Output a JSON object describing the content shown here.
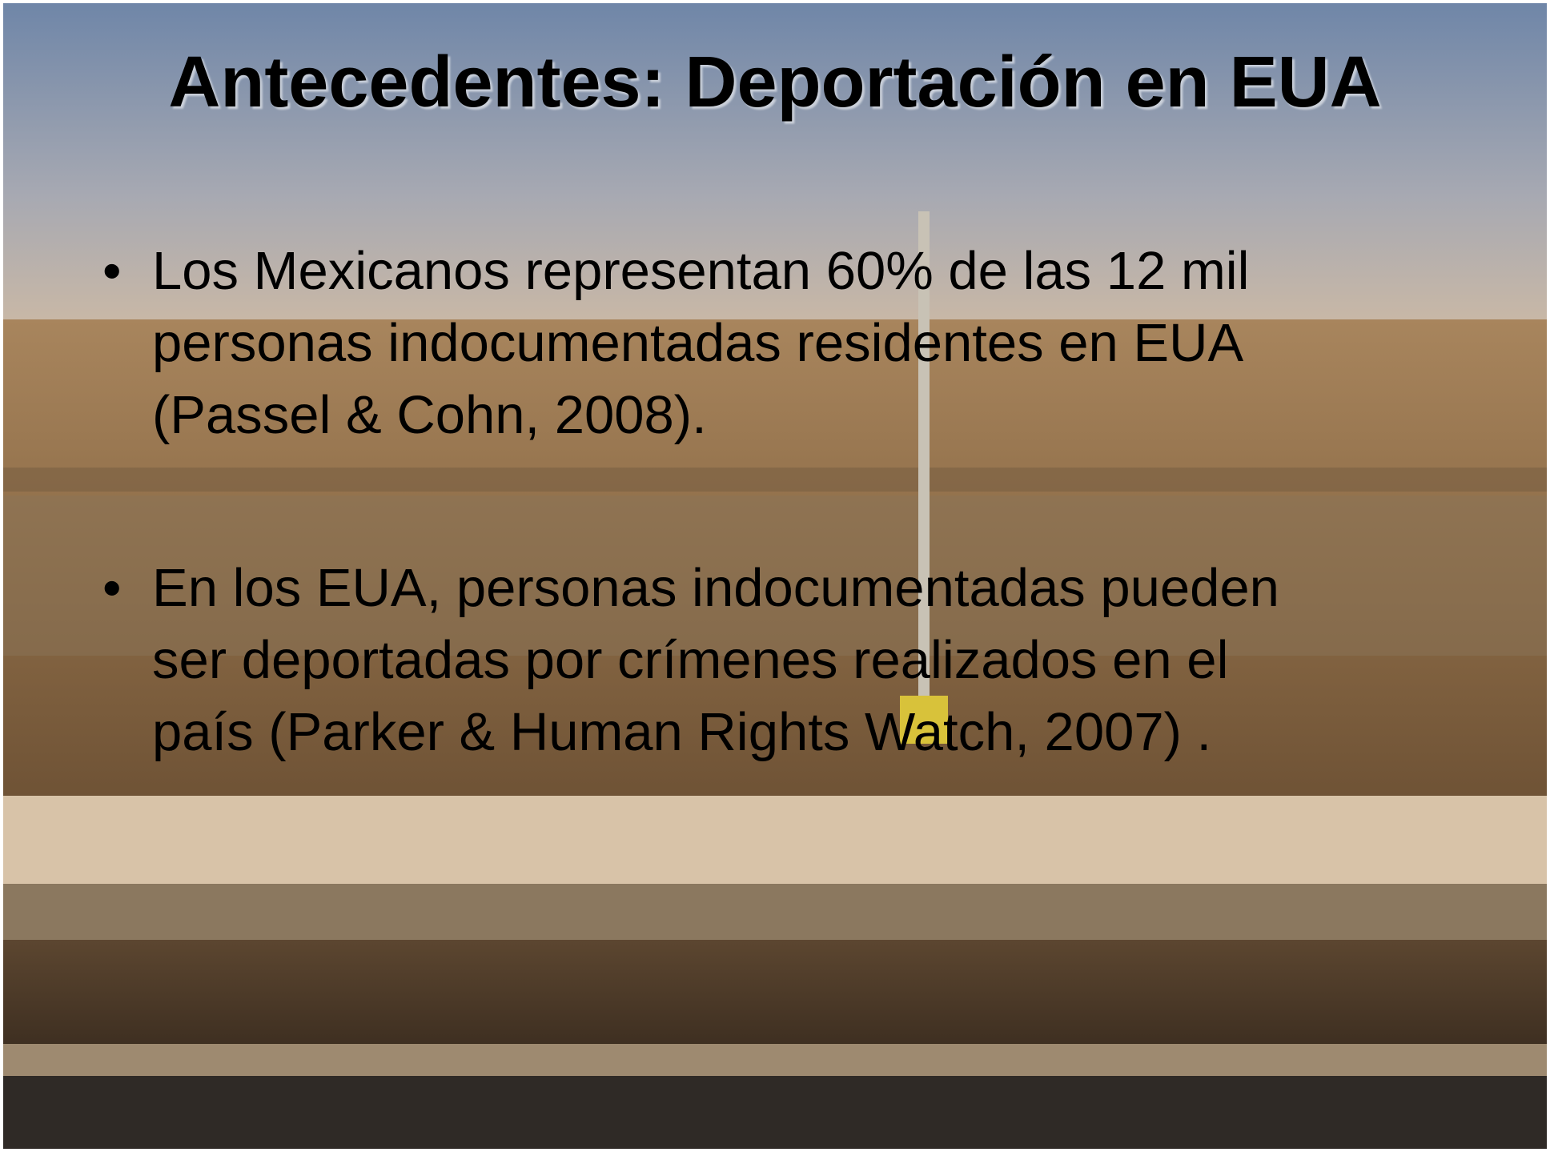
{
  "slide": {
    "title": "Antecedentes: Deportación en EUA",
    "bullets": [
      {
        "lines": [
          "Los Mexicanos representan 60% de las 12 mil",
          "personas indocumentadas residentes en EUA",
          "(Passel & Cohn, 2008)."
        ]
      },
      {
        "lines": [
          "En los EUA, personas indocumentadas pueden",
          "ser deportadas por crímenes realizados en el",
          "país (Parker & Human Rights Watch, 2007) ."
        ]
      }
    ]
  }
}
